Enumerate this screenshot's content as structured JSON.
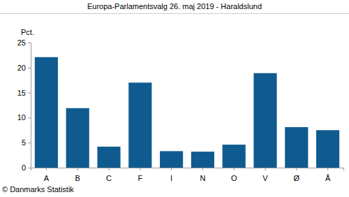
{
  "chart_data": {
    "type": "bar",
    "title": "Europa-Parlamentsvalg 26. maj 2019 - Haraldslund",
    "y_label": "Pct.",
    "annotations": [
      "© Danmarks Statistik"
    ],
    "categories": [
      "A",
      "B",
      "C",
      "F",
      "I",
      "N",
      "O",
      "V",
      "Ø",
      "Å"
    ],
    "values": [
      22.1,
      11.9,
      4.2,
      17.0,
      3.3,
      3.2,
      4.6,
      18.9,
      8.1,
      7.5
    ],
    "color": "#0f5b8f",
    "ylim": [
      0,
      25
    ],
    "yticks": [
      0,
      5,
      10,
      15,
      20,
      25
    ],
    "grid": false
  }
}
